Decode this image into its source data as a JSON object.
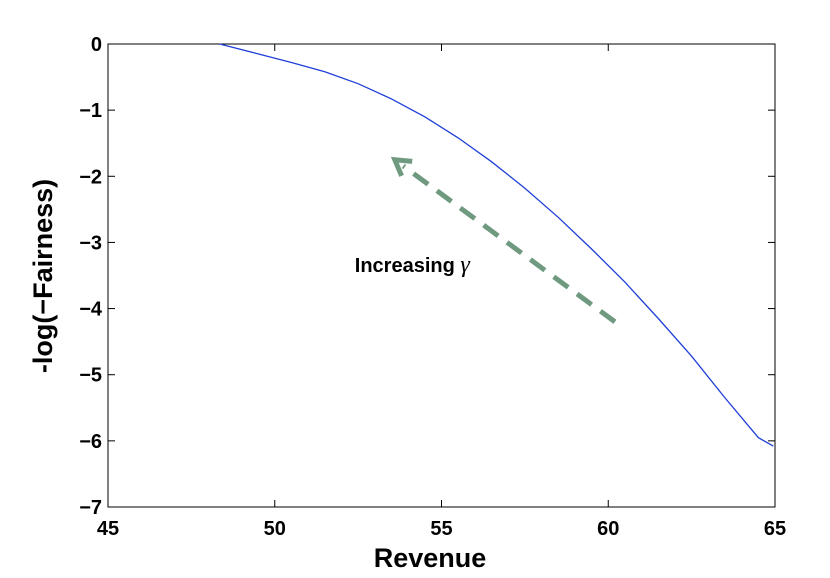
{
  "chart_data": {
    "type": "line",
    "title": "",
    "xlabel": "Revenue",
    "ylabel": "-log(−Fairness)",
    "xlim": [
      45,
      65
    ],
    "ylim": [
      -7,
      0
    ],
    "xticks": [
      45,
      50,
      55,
      60,
      65
    ],
    "xtick_labels": [
      "45",
      "50",
      "55",
      "60",
      "65"
    ],
    "yticks": [
      0,
      -1,
      -2,
      -3,
      -4,
      -5,
      -6,
      -7
    ],
    "ytick_labels": [
      "0",
      "−1",
      "−2",
      "−3",
      "−4",
      "−5",
      "−6",
      "−7"
    ],
    "grid": false,
    "series": [
      {
        "color": "#1f3fd8",
        "x": [
          48.35,
          49.5,
          50.5,
          51.5,
          52.5,
          53.5,
          54.5,
          55.5,
          56.5,
          57.5,
          58.5,
          59.5,
          60.5,
          61.5,
          62.5,
          63.5,
          64.5,
          64.95
        ],
        "y": [
          0.0,
          -0.15,
          -0.28,
          -0.42,
          -0.6,
          -0.83,
          -1.1,
          -1.42,
          -1.78,
          -2.18,
          -2.62,
          -3.1,
          -3.6,
          -4.15,
          -4.72,
          -5.35,
          -5.95,
          -6.08
        ]
      }
    ],
    "annotations": [
      {
        "text": "Increasing ",
        "symbol": "γ",
        "arrow_color": "#6f9a80",
        "arrow_from": [
          60.2,
          -4.2
        ],
        "arrow_to": [
          53.6,
          -1.75
        ],
        "text_at": [
          52.4,
          -3.45
        ]
      }
    ]
  }
}
